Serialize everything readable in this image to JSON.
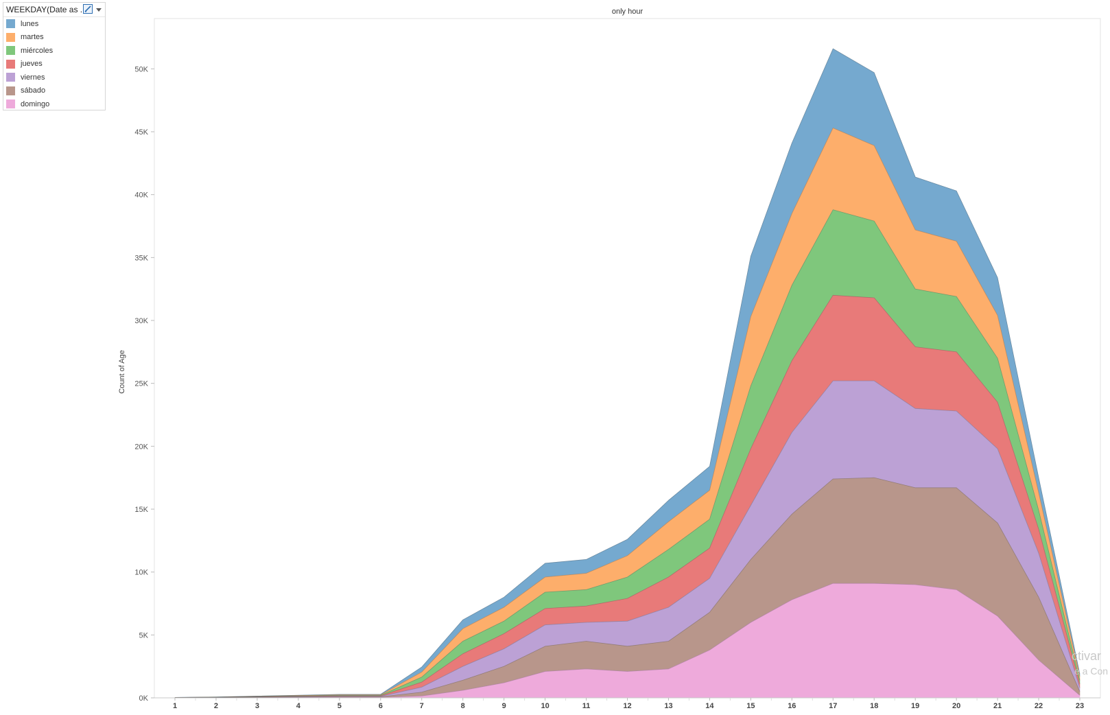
{
  "legend": {
    "title": "WEEKDAY(Date as ...",
    "items": [
      {
        "label": "lunes",
        "color": "#75a9cf"
      },
      {
        "label": "martes",
        "color": "#fdae6b"
      },
      {
        "label": "miércoles",
        "color": "#7fc77c"
      },
      {
        "label": "jueves",
        "color": "#e87a79"
      },
      {
        "label": "viernes",
        "color": "#bca1d5"
      },
      {
        "label": "sábado",
        "color": "#b8968b"
      },
      {
        "label": "domingo",
        "color": "#eeaadb"
      }
    ]
  },
  "watermark": {
    "line1": "ctivar",
    "line2": "e a Con"
  },
  "chart_data": {
    "type": "area",
    "stacked": true,
    "title": "only hour",
    "xlabel": "",
    "ylabel": "Count of Age",
    "x": [
      1,
      2,
      3,
      4,
      5,
      6,
      7,
      8,
      9,
      10,
      11,
      12,
      13,
      14,
      15,
      16,
      17,
      18,
      19,
      20,
      21,
      22,
      23
    ],
    "ylim": [
      0,
      54000
    ],
    "yticks": [
      0,
      5000,
      10000,
      15000,
      20000,
      25000,
      30000,
      35000,
      40000,
      45000,
      50000
    ],
    "ytick_labels": [
      "0K",
      "5K",
      "10K",
      "15K",
      "20K",
      "25K",
      "30K",
      "35K",
      "40K",
      "45K",
      "50K"
    ],
    "grid": false,
    "legend_position": "top-left",
    "series": [
      {
        "name": "domingo",
        "values": [
          5,
          10,
          20,
          30,
          40,
          40,
          150,
          600,
          1200,
          2100,
          2300,
          2100,
          2300,
          3800,
          6000,
          7800,
          9100,
          9100,
          9000,
          8600,
          6500,
          3000,
          200
        ]
      },
      {
        "name": "sábado",
        "values": [
          5,
          10,
          20,
          30,
          40,
          40,
          300,
          800,
          1300,
          2000,
          2200,
          2000,
          2200,
          3000,
          5000,
          6800,
          8300,
          8400,
          7700,
          8100,
          7400,
          5000,
          300
        ]
      },
      {
        "name": "viernes",
        "values": [
          5,
          10,
          20,
          30,
          40,
          40,
          400,
          1100,
          1400,
          1700,
          1500,
          2000,
          2700,
          2700,
          4300,
          6500,
          7800,
          7700,
          6300,
          6100,
          5900,
          3500,
          300
        ]
      },
      {
        "name": "jueves",
        "values": [
          5,
          10,
          20,
          30,
          40,
          40,
          400,
          1000,
          1200,
          1300,
          1300,
          1800,
          2400,
          2400,
          4500,
          5700,
          6800,
          6600,
          4900,
          4700,
          3700,
          1900,
          300
        ]
      },
      {
        "name": "miércoles",
        "values": [
          5,
          10,
          20,
          30,
          40,
          40,
          400,
          1000,
          1000,
          1300,
          1300,
          1700,
          2200,
          2300,
          5000,
          6000,
          6800,
          6100,
          4600,
          4400,
          3500,
          1500,
          300
        ]
      },
      {
        "name": "martes",
        "values": [
          5,
          10,
          20,
          30,
          40,
          40,
          400,
          1000,
          1100,
          1200,
          1300,
          1700,
          2200,
          2300,
          5500,
          5700,
          6500,
          6000,
          4700,
          4400,
          3400,
          1400,
          300
        ]
      },
      {
        "name": "lunes",
        "values": [
          5,
          10,
          20,
          30,
          40,
          40,
          400,
          700,
          800,
          1100,
          1100,
          1300,
          1700,
          1900,
          4800,
          5600,
          6300,
          5800,
          4200,
          4000,
          3000,
          1200,
          200
        ]
      }
    ]
  }
}
